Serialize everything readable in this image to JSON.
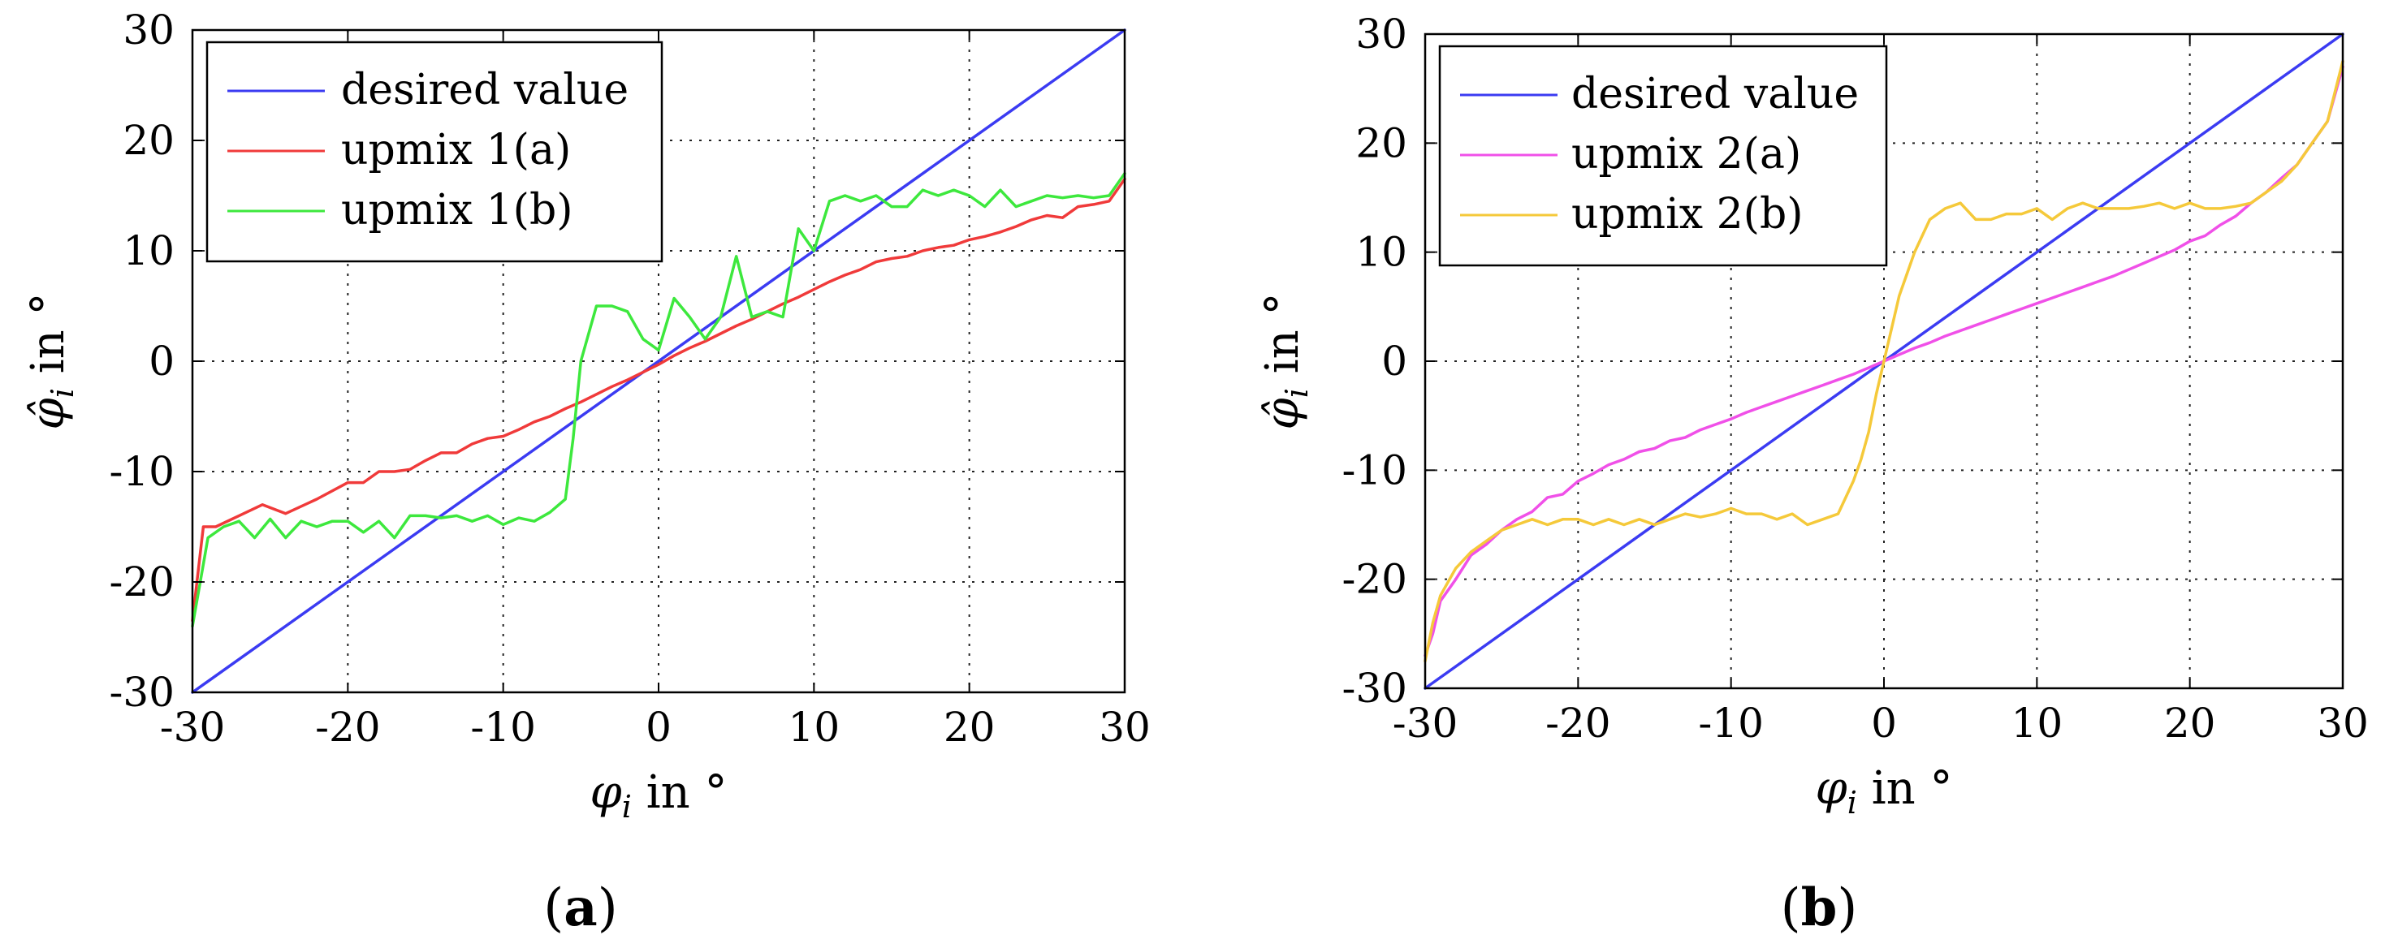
{
  "panels": [
    {
      "caption_letter": "a",
      "y_axis_label": {
        "symbol": "φ̂",
        "sub": "i",
        "text": " in °"
      },
      "x_axis_label": {
        "symbol": "φ",
        "sub": "i",
        "text": " in °"
      }
    },
    {
      "caption_letter": "b",
      "y_axis_label": {
        "symbol": "φ̂",
        "sub": "i",
        "text": " in °"
      },
      "x_axis_label": {
        "symbol": "φ",
        "sub": "i",
        "text": " in °"
      }
    }
  ],
  "chart_data": [
    {
      "type": "line",
      "xlabel": "φi in °",
      "ylabel": "φ̂i in °",
      "xlim": [
        -30,
        30
      ],
      "ylim": [
        -30,
        30
      ],
      "xticks": [
        -30,
        -20,
        -10,
        0,
        10,
        20,
        30
      ],
      "yticks": [
        -30,
        -20,
        -10,
        0,
        10,
        20,
        30
      ],
      "grid": true,
      "legend_position": "top-left",
      "series": [
        {
          "name": "desired value",
          "color": "#3b3bf2",
          "x": [
            -30,
            30
          ],
          "y": [
            -30,
            30
          ]
        },
        {
          "name": "upmix 1(a)",
          "color": "#f03a3a",
          "x": [
            -30,
            -29.3,
            -28.5,
            -27,
            -25.5,
            -24,
            -22,
            -20,
            -19,
            -18,
            -17,
            -16,
            -15,
            -14,
            -13,
            -12,
            -11,
            -10,
            -9,
            -8,
            -7,
            -6,
            -5,
            -4,
            -3,
            -2,
            -1,
            0,
            1,
            2,
            3,
            4,
            5,
            6,
            7,
            8,
            9,
            10,
            11,
            12,
            13,
            14,
            15,
            16,
            17,
            18,
            19,
            20,
            21,
            22,
            23,
            24,
            25,
            26,
            27,
            28,
            29,
            30
          ],
          "y": [
            -23.5,
            -15,
            -15,
            -14,
            -13,
            -13.8,
            -12.5,
            -11,
            -11,
            -10,
            -10,
            -9.8,
            -9,
            -8.3,
            -8.3,
            -7.5,
            -7,
            -6.8,
            -6.2,
            -5.5,
            -5,
            -4.3,
            -3.7,
            -3,
            -2.3,
            -1.7,
            -1,
            -0.3,
            0.5,
            1.2,
            1.8,
            2.5,
            3.2,
            3.8,
            4.5,
            5.2,
            5.8,
            6.5,
            7.2,
            7.8,
            8.3,
            9,
            9.3,
            9.5,
            10,
            10.3,
            10.5,
            11,
            11.3,
            11.7,
            12.2,
            12.8,
            13.2,
            13,
            14,
            14.2,
            14.5,
            16.5
          ]
        },
        {
          "name": "upmix 1(b)",
          "color": "#3de83d",
          "x": [
            -30,
            -29.5,
            -29,
            -28,
            -27,
            -26,
            -25,
            -24,
            -23,
            -22,
            -21,
            -20,
            -19,
            -18,
            -17,
            -16,
            -15,
            -14,
            -13,
            -12,
            -11,
            -10,
            -9,
            -8,
            -7,
            -6,
            -5.5,
            -5,
            -4,
            -3,
            -2,
            -1,
            0,
            1,
            2,
            3,
            4,
            5,
            6,
            7,
            8,
            9,
            10,
            11,
            12,
            13,
            14,
            15,
            16,
            17,
            18,
            19,
            20,
            21,
            22,
            23,
            24,
            25,
            26,
            27,
            28,
            29,
            30
          ],
          "y": [
            -24,
            -20,
            -16,
            -15,
            -14.5,
            -16,
            -14.3,
            -16,
            -14.5,
            -15,
            -14.5,
            -14.5,
            -15.5,
            -14.5,
            -16,
            -14,
            -14,
            -14.2,
            -14,
            -14.5,
            -14,
            -14.8,
            -14.2,
            -14.5,
            -13.7,
            -12.5,
            -7,
            0,
            5,
            5,
            4.5,
            2,
            1,
            5.7,
            4,
            2,
            4,
            9.5,
            4,
            4.5,
            4,
            12,
            10,
            14.5,
            15,
            14.5,
            15,
            14,
            14,
            15.5,
            15,
            15.5,
            15,
            14,
            15.5,
            14,
            14.5,
            15,
            14.8,
            15,
            14.8,
            15,
            17
          ]
        }
      ]
    },
    {
      "type": "line",
      "xlabel": "φi in °",
      "ylabel": "φ̂i in °",
      "xlim": [
        -30,
        30
      ],
      "ylim": [
        -30,
        30
      ],
      "xticks": [
        -30,
        -20,
        -10,
        0,
        10,
        20,
        30
      ],
      "yticks": [
        -30,
        -20,
        -10,
        0,
        10,
        20,
        30
      ],
      "grid": true,
      "legend_position": "top-left",
      "series": [
        {
          "name": "desired value",
          "color": "#3b3bf2",
          "x": [
            -30,
            30
          ],
          "y": [
            -30,
            30
          ]
        },
        {
          "name": "upmix 2(a)",
          "color": "#f050e8",
          "x": [
            -30,
            -29.5,
            -29,
            -28,
            -27,
            -26,
            -25,
            -24,
            -23,
            -22,
            -21,
            -20,
            -19,
            -18,
            -17,
            -16,
            -15,
            -14,
            -13,
            -12,
            -11,
            -10,
            -9,
            -8,
            -7,
            -6,
            -5,
            -4,
            -3,
            -2,
            -1,
            0,
            1,
            2,
            3,
            4,
            5,
            6,
            7,
            8,
            9,
            10,
            11,
            12,
            13,
            14,
            15,
            16,
            17,
            18,
            19,
            20,
            21,
            22,
            23,
            24,
            25,
            26,
            27,
            28,
            29,
            30
          ],
          "y": [
            -27,
            -25,
            -22,
            -20,
            -17.8,
            -16.8,
            -15.5,
            -14.5,
            -13.8,
            -12.5,
            -12.2,
            -11,
            -10.3,
            -9.5,
            -9,
            -8.3,
            -8,
            -7.3,
            -7,
            -6.3,
            -5.8,
            -5.3,
            -4.7,
            -4.2,
            -3.7,
            -3.2,
            -2.7,
            -2.2,
            -1.7,
            -1.2,
            -0.6,
            0,
            0.6,
            1.2,
            1.7,
            2.3,
            2.8,
            3.3,
            3.8,
            4.3,
            4.8,
            5.3,
            5.8,
            6.3,
            6.8,
            7.3,
            7.8,
            8.4,
            9,
            9.6,
            10.2,
            11,
            11.5,
            12.5,
            13.3,
            14.5,
            15.5,
            16.8,
            18,
            20,
            22,
            27
          ]
        },
        {
          "name": "upmix 2(b)",
          "color": "#f5c93a",
          "x": [
            -30,
            -29.5,
            -29,
            -28,
            -27,
            -26,
            -25,
            -24,
            -23,
            -22,
            -21,
            -20,
            -19,
            -18,
            -17,
            -16,
            -15,
            -14,
            -13,
            -12,
            -11,
            -10,
            -9,
            -8,
            -7,
            -6,
            -5,
            -4,
            -3,
            -2,
            -1.5,
            -1,
            -0.5,
            0,
            0.5,
            1,
            1.5,
            2,
            3,
            4,
            5,
            6,
            7,
            8,
            9,
            10,
            11,
            12,
            13,
            14,
            15,
            16,
            17,
            18,
            19,
            20,
            21,
            22,
            23,
            24,
            25,
            26,
            27,
            28,
            29,
            30
          ],
          "y": [
            -27.5,
            -24,
            -21.5,
            -19,
            -17.5,
            -16.5,
            -15.5,
            -15,
            -14.5,
            -15,
            -14.5,
            -14.5,
            -15,
            -14.5,
            -15,
            -14.5,
            -15,
            -14.5,
            -14,
            -14.3,
            -14,
            -13.5,
            -14,
            -14,
            -14.5,
            -14,
            -15,
            -14.5,
            -14,
            -11,
            -9,
            -6.5,
            -3,
            0,
            3,
            6,
            8,
            10,
            13,
            14,
            14.5,
            13,
            13,
            13.5,
            13.5,
            14,
            13,
            14,
            14.5,
            14,
            14,
            14,
            14.2,
            14.5,
            14,
            14.5,
            14,
            14,
            14.2,
            14.5,
            15.5,
            16.5,
            18,
            20,
            22,
            27.5
          ]
        }
      ]
    }
  ]
}
